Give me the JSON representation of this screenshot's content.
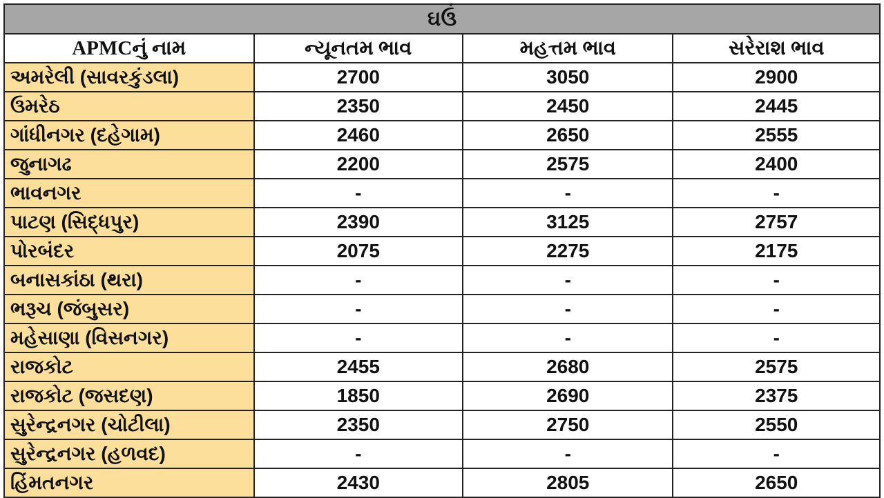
{
  "title": "ઘઉં",
  "headers": [
    "APMCનું નામ",
    "ન્યૂનતમ ભાવ",
    "મહત્તમ ભાવ",
    "સરેરાશ ભાવ"
  ],
  "rows": [
    [
      "અમરેલી (સાવરકુંડલા)",
      "2700",
      "3050",
      "2900"
    ],
    [
      "ઉમરેઠ",
      "2350",
      "2450",
      "2445"
    ],
    [
      "ગાંધીનગર (દહેગામ)",
      "2460",
      "2650",
      "2555"
    ],
    [
      "જુનાગઢ",
      "2200",
      "2575",
      "2400"
    ],
    [
      "ભાવનગર",
      "-",
      "-",
      "-"
    ],
    [
      "પાટણ (સિદ્ધપુર)",
      "2390",
      "3125",
      "2757"
    ],
    [
      "પોરબંદર",
      "2075",
      "2275",
      "2175"
    ],
    [
      "બનાસકાંઠા (થરા)",
      "-",
      "-",
      "-"
    ],
    [
      "ભરૂચ (જંબુસર)",
      "-",
      "-",
      "-"
    ],
    [
      "મહેસાણા (વિસનગર)",
      "-",
      "-",
      "-"
    ],
    [
      "રાજકોટ",
      "2455",
      "2680",
      "2575"
    ],
    [
      "રાજકોટ (જસદણ)",
      "1850",
      "2690",
      "2375"
    ],
    [
      "સુરેન્દ્રનગર (ચોટીલા)",
      "2350",
      "2750",
      "2550"
    ],
    [
      "સુરેન્દ્રનગર (હળવદ)",
      "-",
      "-",
      "-"
    ],
    [
      "હિંમતનગર",
      "2430",
      "2805",
      "2650"
    ]
  ],
  "colors": {
    "title_bg": "#a6a6a6",
    "name_bg": "#fddf9c"
  }
}
